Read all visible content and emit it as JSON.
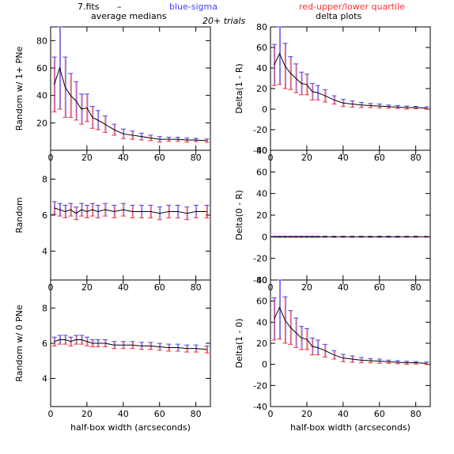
{
  "header": {
    "file": "7.fits",
    "dash": "–",
    "blue_label": "blue-sigma",
    "red_label": "red-upper/lower quartile",
    "subtitle": "20+ trials",
    "left_title": "average medians",
    "right_title": "delta plots",
    "colors": {
      "median": "#000000",
      "sigma": "#4040ff",
      "quartile": "#ff3030"
    }
  },
  "chart_data": [
    {
      "type": "line",
      "panel": "left-top",
      "xlabel": "",
      "ylabel": "Random w/ 1+ PNe",
      "xlim": [
        0,
        88
      ],
      "ylim": [
        0,
        90
      ],
      "xticks": [
        0,
        20,
        40,
        60,
        80
      ],
      "yticks": [
        20,
        40,
        60,
        80
      ],
      "x": [
        2,
        5,
        8,
        11,
        14,
        17,
        20,
        23,
        26,
        30,
        35,
        40,
        45,
        50,
        55,
        60,
        65,
        70,
        75,
        80,
        86
      ],
      "series": [
        {
          "values": [
            48,
            60,
            46,
            40,
            36,
            30,
            31,
            24,
            22,
            19,
            15,
            12,
            11,
            10,
            9,
            8,
            8,
            8,
            7.5,
            7.5,
            7
          ]
        }
      ],
      "error": [
        20,
        30,
        22,
        16,
        14,
        11,
        10,
        8,
        7,
        6,
        4,
        3.5,
        3,
        2.5,
        2,
        2,
        1.5,
        1.5,
        1.5,
        1.2,
        1.2
      ]
    },
    {
      "type": "line",
      "panel": "left-middle",
      "xlabel": "",
      "ylabel": "Random",
      "xlim": [
        0,
        88
      ],
      "ylim": [
        2.4,
        9.6
      ],
      "xticks": [
        0,
        20,
        40,
        60,
        80
      ],
      "yticks": [
        4,
        6,
        8
      ],
      "x": [
        2,
        5,
        8,
        11,
        14,
        17,
        20,
        23,
        26,
        30,
        35,
        40,
        45,
        50,
        55,
        60,
        65,
        70,
        75,
        80,
        86
      ],
      "series": [
        {
          "values": [
            6.4,
            6.3,
            6.2,
            6.3,
            6.1,
            6.3,
            6.2,
            6.3,
            6.2,
            6.3,
            6.2,
            6.3,
            6.2,
            6.2,
            6.2,
            6.1,
            6.2,
            6.2,
            6.1,
            6.2,
            6.2
          ]
        }
      ],
      "error": [
        0.35,
        0.35,
        0.35,
        0.35,
        0.35,
        0.35,
        0.35,
        0.35,
        0.35,
        0.35,
        0.35,
        0.35,
        0.35,
        0.35,
        0.35,
        0.35,
        0.35,
        0.35,
        0.35,
        0.35,
        0.35
      ]
    },
    {
      "type": "line",
      "panel": "left-bottom",
      "xlabel": "half-box width (arcseconds)",
      "ylabel": "Random w/ 0 PNe",
      "xlim": [
        0,
        88
      ],
      "ylim": [
        2.4,
        9.6
      ],
      "xticks": [
        0,
        20,
        40,
        60,
        80
      ],
      "yticks": [
        4,
        6,
        8
      ],
      "x": [
        2,
        5,
        8,
        11,
        14,
        17,
        20,
        23,
        26,
        30,
        35,
        40,
        45,
        50,
        55,
        60,
        65,
        70,
        75,
        80,
        86
      ],
      "series": [
        {
          "values": [
            6.1,
            6.2,
            6.2,
            6.1,
            6.2,
            6.2,
            6.1,
            6.0,
            6.0,
            6.0,
            5.9,
            5.9,
            5.9,
            5.85,
            5.85,
            5.8,
            5.75,
            5.75,
            5.7,
            5.7,
            5.65
          ]
        }
      ],
      "error": [
        0.25,
        0.25,
        0.25,
        0.25,
        0.25,
        0.25,
        0.25,
        0.2,
        0.2,
        0.2,
        0.2,
        0.2,
        0.2,
        0.2,
        0.2,
        0.2,
        0.2,
        0.2,
        0.2,
        0.2,
        0.2
      ]
    },
    {
      "type": "line",
      "panel": "right-top",
      "xlabel": "",
      "ylabel": "Delta(1 - R)",
      "xlim": [
        0,
        88
      ],
      "ylim": [
        -40,
        80
      ],
      "xticks": [
        0,
        20,
        40,
        60,
        80
      ],
      "yticks": [
        -40,
        -20,
        0,
        20,
        40,
        60,
        80
      ],
      "x": [
        2,
        5,
        8,
        11,
        14,
        17,
        20,
        23,
        26,
        30,
        35,
        40,
        45,
        50,
        55,
        60,
        65,
        70,
        75,
        80,
        86
      ],
      "series": [
        {
          "values": [
            43,
            54,
            42,
            35,
            30,
            25,
            24,
            17,
            16,
            13,
            9,
            6,
            5,
            4,
            3.5,
            3,
            2.5,
            2,
            1.5,
            1.5,
            1
          ]
        }
      ],
      "error": [
        20,
        30,
        22,
        16,
        14,
        11,
        10,
        8,
        7,
        6,
        4,
        3.5,
        3,
        2.5,
        2,
        2,
        1.5,
        1.5,
        1.5,
        1.2,
        1.2
      ]
    },
    {
      "type": "line",
      "panel": "right-middle",
      "xlabel": "",
      "ylabel": "Delta(0 - R)",
      "xlim": [
        0,
        88
      ],
      "ylim": [
        -40,
        80
      ],
      "xticks": [
        0,
        20,
        40,
        60,
        80
      ],
      "yticks": [
        -40,
        -20,
        0,
        20,
        40,
        60,
        80
      ],
      "x": [
        2,
        5,
        8,
        11,
        14,
        17,
        20,
        23,
        26,
        30,
        35,
        40,
        45,
        50,
        55,
        60,
        65,
        70,
        75,
        80,
        86
      ],
      "series": [
        {
          "values": [
            0,
            0,
            0,
            0,
            0,
            0,
            0,
            0,
            0,
            0,
            0,
            0,
            0,
            0,
            0,
            0,
            0,
            0,
            0,
            0,
            0
          ]
        }
      ],
      "error": [
        0.5,
        0.5,
        0.5,
        0.5,
        0.5,
        0.5,
        0.5,
        0.5,
        0.5,
        0.5,
        0.5,
        0.5,
        0.5,
        0.5,
        0.5,
        0.5,
        0.5,
        0.5,
        0.5,
        0.5,
        0.5
      ]
    },
    {
      "type": "line",
      "panel": "right-bottom",
      "xlabel": "half-box width (arcseconds)",
      "ylabel": "Delta(1 - 0)",
      "xlim": [
        0,
        88
      ],
      "ylim": [
        -40,
        80
      ],
      "xticks": [
        0,
        20,
        40,
        60,
        80
      ],
      "yticks": [
        -40,
        -20,
        0,
        20,
        40,
        60,
        80
      ],
      "x": [
        2,
        5,
        8,
        11,
        14,
        17,
        20,
        23,
        26,
        30,
        35,
        40,
        45,
        50,
        55,
        60,
        65,
        70,
        75,
        80,
        86
      ],
      "series": [
        {
          "values": [
            43,
            54,
            42,
            35,
            30,
            25,
            24,
            17,
            16,
            13,
            9,
            6,
            5,
            4,
            3.5,
            3,
            2.5,
            2,
            1.5,
            1.5,
            1
          ]
        }
      ],
      "error": [
        20,
        30,
        22,
        16,
        14,
        11,
        10,
        8,
        7,
        6,
        4,
        3.5,
        3,
        2.5,
        2,
        2,
        1.5,
        1.5,
        1.5,
        1.2,
        1.2
      ]
    }
  ]
}
